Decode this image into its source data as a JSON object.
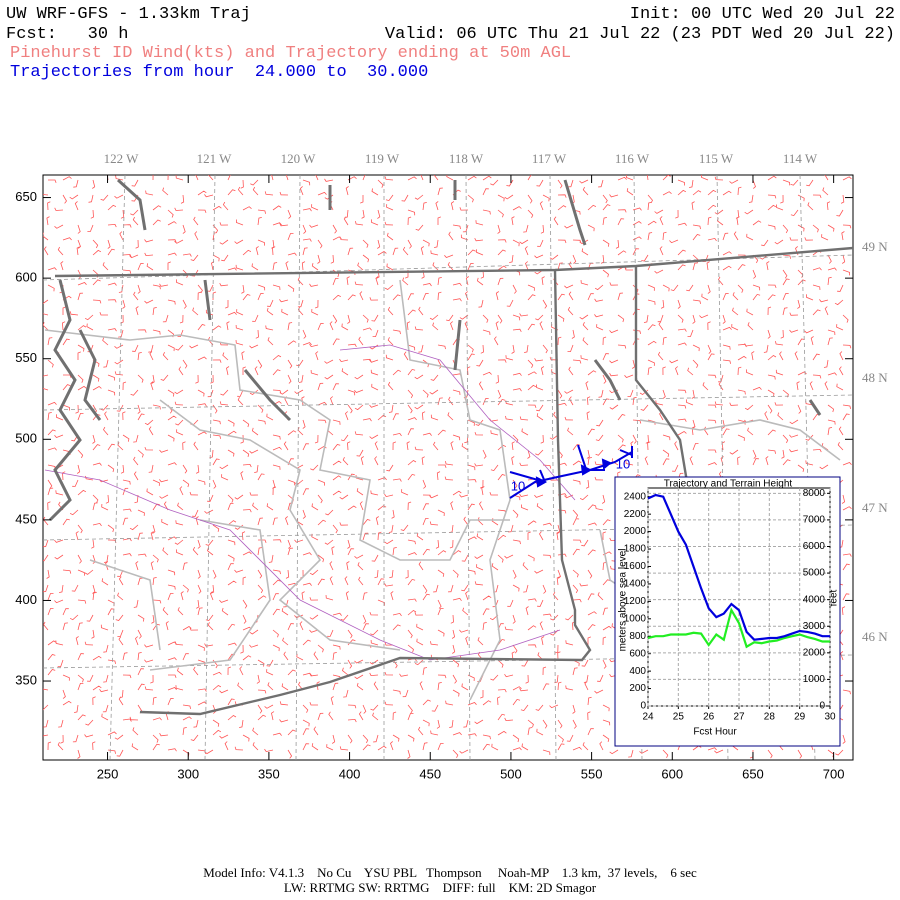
{
  "header": {
    "title": "UW WRF-GFS - 1.33km Traj",
    "init": "Init: 00 UTC Wed 20 Jul 22",
    "fcst": "Fcst:   30 h",
    "valid": "Valid: 06 UTC Thu 21 Jul 22 (23 PDT Wed 20 Jul 22)",
    "subtitle": "Pinehurst ID Wind(kts) and Trajectory ending at 50m AGL",
    "trajectory_range": "Trajectories from hour  24.000 to  30.000"
  },
  "map": {
    "xlim": [
      210,
      712
    ],
    "ylim": [
      301,
      664
    ],
    "xticks": [
      250,
      300,
      350,
      400,
      450,
      500,
      550,
      600,
      650,
      700
    ],
    "yticks": [
      350,
      400,
      450,
      500,
      550,
      600,
      650
    ],
    "longitude_labels": [
      "122 W",
      "121 W",
      "120 W",
      "119 W",
      "118 W",
      "117 W",
      "116 W",
      "115 W",
      "114 W"
    ],
    "latitude_labels": [
      "49 N",
      "48 N",
      "47 N",
      "46 N"
    ],
    "trajectory_labels": [
      "10",
      "10"
    ]
  },
  "chart_data": {
    "type": "line",
    "title": "Trajectory and Terrain Height",
    "xlabel": "Fcst Hour",
    "ylabel": "meters above sea level",
    "y2label": "feet",
    "x": [
      24,
      24.25,
      24.5,
      24.75,
      25,
      25.25,
      25.5,
      25.75,
      26,
      26.25,
      26.5,
      26.75,
      27,
      27.25,
      27.5,
      27.75,
      28,
      28.25,
      28.5,
      28.75,
      29,
      29.25,
      29.5,
      29.75,
      30
    ],
    "xlim": [
      24,
      30
    ],
    "xticks": [
      24,
      25,
      26,
      27,
      28,
      29,
      30
    ],
    "ylim": [
      0,
      2500
    ],
    "yticks": [
      0,
      200,
      400,
      600,
      800,
      1000,
      1200,
      1400,
      1600,
      1800,
      2000,
      2200,
      2400
    ],
    "y2lim": [
      0,
      8200
    ],
    "y2ticks": [
      0,
      1000,
      2000,
      3000,
      4000,
      5000,
      6000,
      7000,
      8000
    ],
    "grid": true,
    "series": [
      {
        "color": "#0000dd",
        "values": [
          2380,
          2420,
          2400,
          2200,
          2000,
          1850,
          1600,
          1350,
          1120,
          1020,
          1060,
          1170,
          1100,
          850,
          760,
          770,
          780,
          780,
          800,
          830,
          860,
          850,
          830,
          800,
          800
        ]
      },
      {
        "color": "#22ee22",
        "values": [
          780,
          800,
          800,
          820,
          820,
          820,
          840,
          830,
          700,
          820,
          760,
          1100,
          950,
          680,
          730,
          720,
          740,
          750,
          780,
          800,
          820,
          790,
          770,
          740,
          740
        ]
      }
    ]
  },
  "footer": {
    "line1": "Model Info: V4.1.3    No Cu    YSU PBL   Thompson     Noah-MP    1.3 km,  37 levels,    6 sec",
    "line2": "LW: RRTMG SW: RRTMG    DIFF: full    KM: 2D Smagor"
  }
}
